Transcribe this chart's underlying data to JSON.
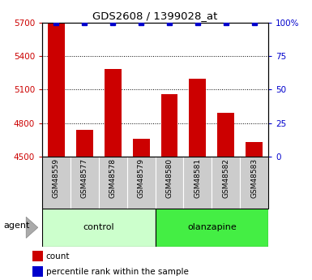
{
  "title": "GDS2608 / 1399028_at",
  "samples": [
    "GSM48559",
    "GSM48577",
    "GSM48578",
    "GSM48579",
    "GSM48580",
    "GSM48581",
    "GSM48582",
    "GSM48583"
  ],
  "counts": [
    5693,
    4740,
    5285,
    4660,
    5060,
    5200,
    4890,
    4630
  ],
  "percentile_ranks": [
    100,
    100,
    100,
    100,
    100,
    100,
    100,
    100
  ],
  "groups": [
    "control",
    "control",
    "control",
    "control",
    "olanzapine",
    "olanzapine",
    "olanzapine",
    "olanzapine"
  ],
  "control_color_light": "#ccffcc",
  "control_color": "#ccffcc",
  "olanzapine_color": "#44ee44",
  "bar_color": "#cc0000",
  "dot_color": "#0000cc",
  "dot_marker": "s",
  "dot_size": 4,
  "ylim_left": [
    4500,
    5700
  ],
  "ylim_right": [
    0,
    100
  ],
  "yticks_left": [
    4500,
    4800,
    5100,
    5400,
    5700
  ],
  "yticks_right": [
    0,
    25,
    50,
    75,
    100
  ],
  "left_color": "#cc0000",
  "right_color": "#0000cc",
  "grid_linestyle": "dotted",
  "agent_label": "agent",
  "legend_count_label": "count",
  "legend_percentile_label": "percentile rank within the sample",
  "sample_bg_color": "#cccccc",
  "bar_width": 0.6,
  "figsize": [
    3.85,
    3.45
  ],
  "dpi": 100
}
